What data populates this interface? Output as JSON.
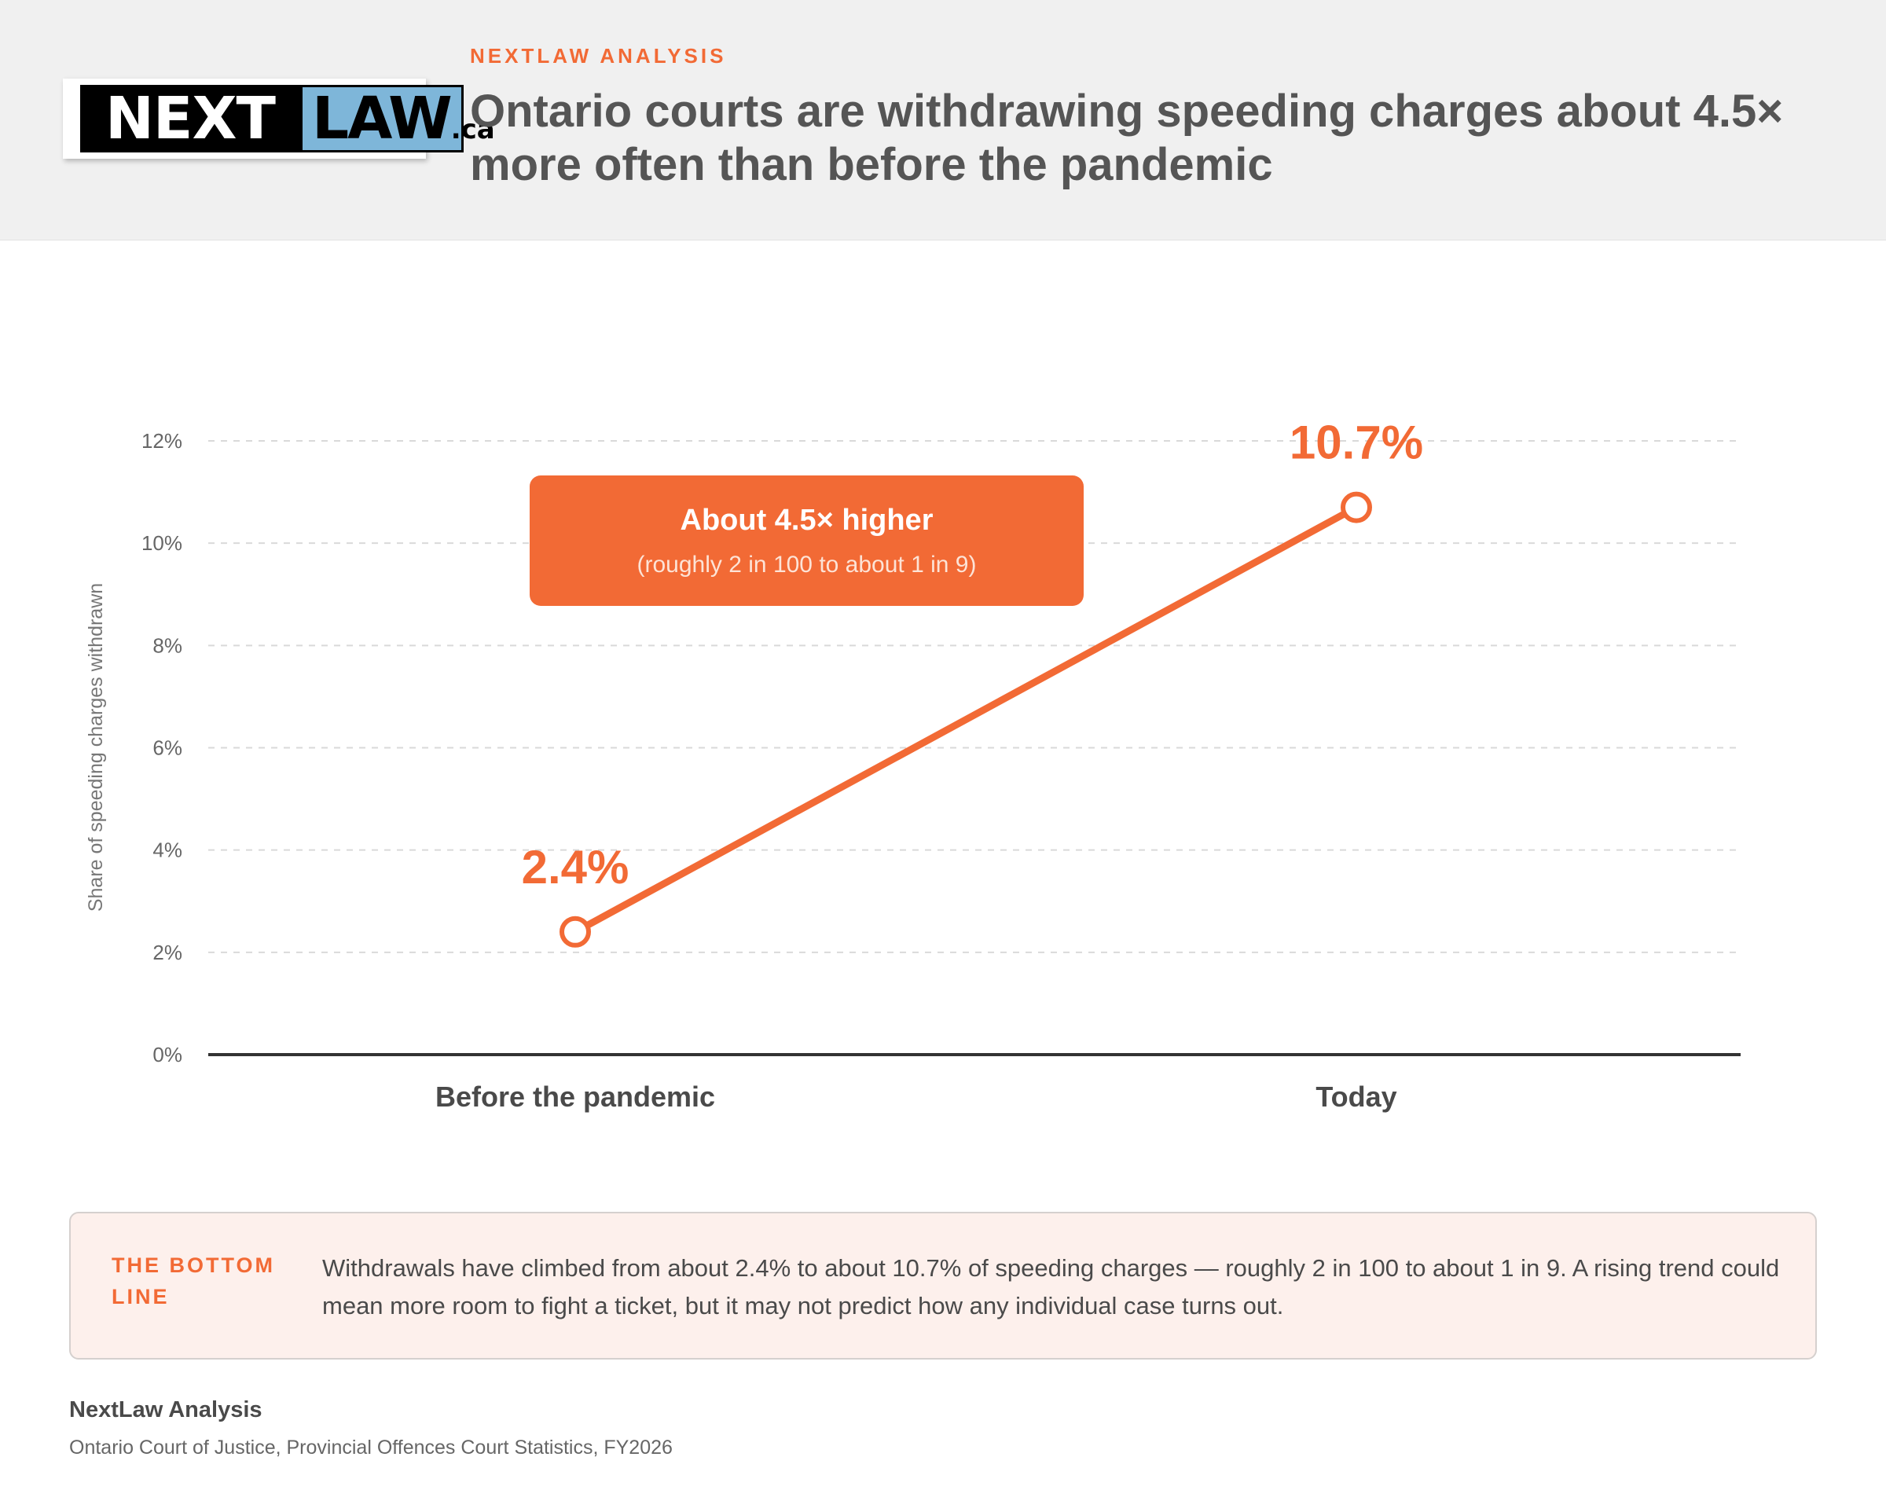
{
  "logo": {
    "next": "NEXT",
    "law": "LAW",
    "tld": ".ca"
  },
  "header": {
    "kicker": "NEXTLAW ANALYSIS",
    "title": "Ontario courts are withdrawing speeding charges about 4.5× more often than before the pandemic"
  },
  "chart_data": {
    "type": "line",
    "categories": [
      "Before the pandemic",
      "Today"
    ],
    "values": [
      2.4,
      10.7
    ],
    "value_labels": [
      "2.4%",
      "10.7%"
    ],
    "ylabel": "Share of speeding charges withdrawn",
    "ylim": [
      0,
      12
    ],
    "yticks": [
      0,
      2,
      4,
      6,
      8,
      10,
      12
    ],
    "ytick_labels": [
      "0%",
      "2%",
      "4%",
      "6%",
      "8%",
      "10%",
      "12%"
    ],
    "grid": "horizontal dashed",
    "color": "#f26a35",
    "annotation": {
      "title": "About 4.5× higher",
      "subtitle": "(roughly 2 in 100 to about 1 in 9)"
    }
  },
  "bottom_line": {
    "label": "THE BOTTOM LINE",
    "text": "Withdrawals have climbed from about 2.4% to about 10.7% of speeding charges — roughly 2 in 100 to about 1 in 9. A rising trend could mean more room to fight a ticket, but it may not predict how any individual case turns out."
  },
  "footer": {
    "title": "NextLaw Analysis",
    "source": "Ontario Court of Justice, Provincial Offences Court Statistics, FY2026"
  }
}
